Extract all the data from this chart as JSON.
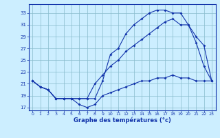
{
  "xlabel": "Graphe des températures (°c)",
  "background_color": "#cceeff",
  "grid_color": "#88bbcc",
  "line_color": "#1133aa",
  "xlim": [
    -0.5,
    23.5
  ],
  "ylim": [
    16.5,
    34.5
  ],
  "xticks": [
    0,
    1,
    2,
    3,
    4,
    5,
    6,
    7,
    8,
    9,
    10,
    11,
    12,
    13,
    14,
    15,
    16,
    17,
    18,
    19,
    20,
    21,
    22,
    23
  ],
  "yticks": [
    17,
    19,
    21,
    23,
    25,
    27,
    29,
    31,
    33
  ],
  "line1_x": [
    0,
    1,
    2,
    3,
    4,
    5,
    6,
    7,
    8,
    9,
    10,
    11,
    12,
    13,
    14,
    15,
    16,
    17,
    18,
    19,
    20,
    21,
    22,
    23
  ],
  "line1_y": [
    21.5,
    20.5,
    20.0,
    18.5,
    18.5,
    18.5,
    18.5,
    18.5,
    18.5,
    21.5,
    26.0,
    27.0,
    29.5,
    31.0,
    32.0,
    33.0,
    33.5,
    33.5,
    33.0,
    33.0,
    31.0,
    28.0,
    24.0,
    21.5
  ],
  "line2_x": [
    0,
    1,
    2,
    3,
    4,
    5,
    6,
    7,
    8,
    9,
    10,
    11,
    12,
    13,
    14,
    15,
    16,
    17,
    18,
    19,
    20,
    21,
    22,
    23
  ],
  "line2_y": [
    21.5,
    20.5,
    20.0,
    18.5,
    18.5,
    18.5,
    18.5,
    18.5,
    21.0,
    22.5,
    24.0,
    25.0,
    26.5,
    27.5,
    28.5,
    29.5,
    30.5,
    31.5,
    32.0,
    31.0,
    31.0,
    29.0,
    27.5,
    21.5
  ],
  "line3_x": [
    0,
    1,
    2,
    3,
    4,
    5,
    6,
    7,
    8,
    9,
    10,
    11,
    12,
    13,
    14,
    15,
    16,
    17,
    18,
    19,
    20,
    21,
    22,
    23
  ],
  "line3_y": [
    21.5,
    20.5,
    20.0,
    18.5,
    18.5,
    18.5,
    17.5,
    17.0,
    17.5,
    19.0,
    19.5,
    20.0,
    20.5,
    21.0,
    21.5,
    21.5,
    22.0,
    22.0,
    22.5,
    22.0,
    22.0,
    21.5,
    21.5,
    21.5
  ]
}
